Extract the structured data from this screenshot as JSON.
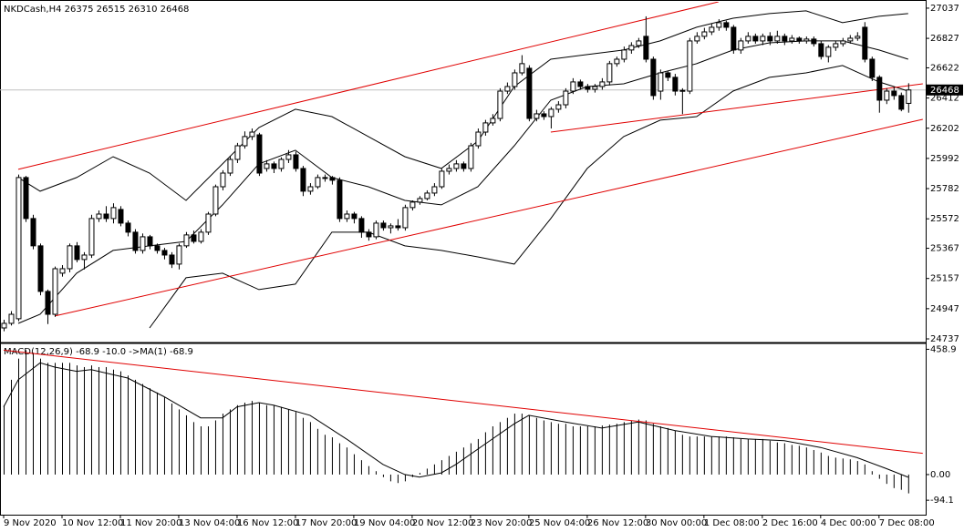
{
  "chart_data": [
    {
      "type": "candlestick",
      "title": "NKDCash,H4  26375 26515 26310 26468",
      "xlim": [
        -0.5,
        126.4
      ],
      "ylim": [
        24718,
        27081
      ],
      "yticks": [
        27037,
        26827,
        26622,
        26412,
        26202,
        25992,
        25782,
        25572,
        25367,
        25157,
        24947,
        24737
      ],
      "last_price": 26468,
      "color": "#000000",
      "open": [
        24813,
        24845,
        24877,
        25859,
        25574,
        25384,
        25067,
        24908,
        25194,
        25225,
        25384,
        25289,
        25320,
        25574,
        25605,
        25574,
        25637,
        25542,
        25479,
        25352,
        25447,
        25384,
        25352,
        25320,
        25257,
        25384,
        25460,
        25415,
        25479,
        25605,
        25795,
        25890,
        25985,
        26080,
        26144,
        26156,
        25922,
        25954,
        25922,
        25985,
        26017,
        25922,
        25764,
        25795,
        25859,
        25859,
        25840,
        25574,
        25605,
        25574,
        25479,
        25447,
        25542,
        25510,
        25523,
        25510,
        25650,
        25688,
        25713,
        25751,
        25795,
        25903,
        25922,
        25954,
        25922,
        26080,
        26175,
        26239,
        26270,
        26460,
        26492,
        26587,
        26619,
        26270,
        26302,
        26283,
        26334,
        26365,
        26460,
        26524,
        26492,
        26473,
        26492,
        26524,
        26651,
        26682,
        26746,
        26777,
        26841,
        26682,
        26460,
        26587,
        26556,
        26460,
        26460,
        26809,
        26841,
        26872,
        26904,
        26936,
        26904,
        26746,
        26809,
        26841,
        26809,
        26841,
        26809,
        26841,
        26809,
        26828,
        26809,
        26822,
        26790,
        26701,
        26765,
        26790,
        26809,
        26828,
        26904,
        26682,
        26556,
        26397,
        26460,
        26429,
        26375
      ],
      "high": [
        24870,
        24930,
        25880,
        25870,
        25600,
        25400,
        25080,
        25240,
        25250,
        25400,
        25410,
        25340,
        25600,
        25630,
        25660,
        25680,
        25660,
        25560,
        25500,
        25470,
        25460,
        25400,
        25370,
        25340,
        25400,
        25480,
        25490,
        25500,
        25620,
        25810,
        25910,
        26010,
        26100,
        26180,
        26200,
        26170,
        25980,
        25970,
        26000,
        26050,
        26040,
        25940,
        25820,
        25880,
        25880,
        25870,
        25860,
        25630,
        25620,
        25590,
        25500,
        25560,
        25560,
        25540,
        25570,
        25670,
        25700,
        25730,
        25770,
        25820,
        25920,
        25950,
        25980,
        25970,
        26100,
        26200,
        26260,
        26300,
        26480,
        26520,
        26610,
        26710,
        26640,
        26330,
        26320,
        26350,
        26390,
        26480,
        26550,
        26540,
        26510,
        26510,
        26550,
        26670,
        26700,
        26770,
        26800,
        26830,
        26980,
        26700,
        26610,
        26600,
        26580,
        26480,
        26830,
        26870,
        26900,
        26930,
        26960,
        26950,
        26920,
        26830,
        26870,
        26860,
        26860,
        26870,
        26880,
        26860,
        26850,
        26840,
        26840,
        26840,
        26810,
        26780,
        26810,
        26830,
        26850,
        26870,
        26940,
        26700,
        26570,
        26480,
        26490,
        26450,
        26515
      ],
      "low": [
        24790,
        24830,
        24860,
        25550,
        25360,
        25040,
        24840,
        24890,
        25170,
        25200,
        25270,
        25220,
        25300,
        25550,
        25550,
        25540,
        25520,
        25450,
        25330,
        25330,
        25360,
        25330,
        25290,
        25230,
        25220,
        25370,
        25400,
        25400,
        25460,
        25590,
        25770,
        25870,
        25960,
        26060,
        26120,
        25870,
        25900,
        25890,
        25900,
        25960,
        25900,
        25730,
        25740,
        25780,
        25830,
        25810,
        25550,
        25550,
        25540,
        25440,
        25420,
        25430,
        25490,
        25470,
        25490,
        25490,
        25630,
        25670,
        25700,
        25730,
        25780,
        25880,
        25900,
        25900,
        25900,
        26060,
        26150,
        26220,
        26250,
        26440,
        26470,
        26570,
        26250,
        26250,
        26260,
        26200,
        26310,
        26340,
        26440,
        26470,
        26450,
        26450,
        26470,
        26500,
        26630,
        26660,
        26720,
        26760,
        26660,
        26400,
        26400,
        26530,
        26430,
        26300,
        26440,
        26790,
        26820,
        26850,
        26880,
        26880,
        26720,
        26720,
        26790,
        26790,
        26780,
        26780,
        26790,
        26780,
        26790,
        26790,
        26790,
        26770,
        26680,
        26660,
        26740,
        26770,
        26790,
        26810,
        26660,
        26530,
        26310,
        26370,
        26400,
        26320,
        26310
      ],
      "close": [
        24845,
        24908,
        25859,
        25574,
        25384,
        25067,
        24908,
        25225,
        25225,
        25384,
        25289,
        25320,
        25574,
        25605,
        25574,
        25650,
        25542,
        25479,
        25352,
        25447,
        25384,
        25352,
        25320,
        25257,
        25384,
        25460,
        25415,
        25479,
        25605,
        25795,
        25890,
        25985,
        26080,
        26144,
        26175,
        25890,
        25954,
        25922,
        25985,
        26017,
        25922,
        25764,
        25795,
        25859,
        25855,
        25840,
        25574,
        25605,
        25574,
        25479,
        25447,
        25542,
        25510,
        25523,
        25510,
        25650,
        25688,
        25713,
        25751,
        25795,
        25903,
        25922,
        25954,
        25922,
        26080,
        26175,
        26239,
        26270,
        26460,
        26492,
        26587,
        26651,
        26270,
        26302,
        26283,
        26334,
        26365,
        26460,
        26524,
        26492,
        26473,
        26492,
        26524,
        26651,
        26682,
        26746,
        26777,
        26809,
        26682,
        26429,
        26587,
        26556,
        26460,
        26465,
        26809,
        26841,
        26872,
        26904,
        26936,
        26904,
        26746,
        26809,
        26841,
        26809,
        26841,
        26809,
        26841,
        26809,
        26828,
        26809,
        26822,
        26790,
        26701,
        26765,
        26790,
        26809,
        26828,
        26841,
        26682,
        26556,
        26397,
        26460,
        26429,
        26334,
        26468
      ],
      "overlays": [
        {
          "color": "#000000",
          "x": [
            2,
            5,
            10,
            15,
            20,
            25,
            30,
            35,
            40,
            45,
            50,
            55,
            60,
            65,
            70,
            75,
            80,
            85,
            90,
            95,
            100,
            105,
            110,
            115,
            120,
            124
          ],
          "values": [
            25859,
            25764,
            25859,
            26004,
            25890,
            25700,
            25954,
            26207,
            26334,
            26283,
            26144,
            26004,
            25922,
            26112,
            26492,
            26682,
            26714,
            26746,
            26809,
            26904,
            26967,
            26999,
            27018,
            26936,
            26980,
            26999
          ]
        },
        {
          "color": "#000000",
          "x": [
            2,
            5,
            10,
            15,
            20,
            25,
            30,
            35,
            40,
            45,
            50,
            55,
            60,
            65,
            70,
            75,
            80,
            85,
            90,
            95,
            100,
            105,
            110,
            115,
            120,
            124
          ],
          "values": [
            24845,
            24908,
            25194,
            25352,
            25384,
            25415,
            25669,
            25954,
            26049,
            25859,
            25795,
            25700,
            25669,
            25795,
            26080,
            26397,
            26492,
            26511,
            26587,
            26651,
            26746,
            26796,
            26809,
            26809,
            26746,
            26682
          ]
        },
        {
          "color": "#000000",
          "x": [
            2,
            5,
            10,
            15,
            20,
            25,
            30,
            35,
            40,
            45,
            50,
            55,
            60,
            65,
            70,
            75,
            80,
            85,
            90,
            95,
            100,
            105,
            110,
            115,
            120,
            124
          ],
          "values": [
            null,
            null,
            null,
            null,
            24813,
            25162,
            25194,
            25080,
            25118,
            25479,
            25479,
            25384,
            25352,
            25307,
            25257,
            25574,
            25922,
            26144,
            26258,
            26283,
            26460,
            26556,
            26587,
            26638,
            26524,
            26460
          ]
        }
      ],
      "trendlines": [
        {
          "color": "#e00000",
          "x": [
            2,
            98
          ],
          "values": [
            25916,
            27081
          ]
        },
        {
          "color": "#e00000",
          "x": [
            7,
            126
          ],
          "values": [
            24896,
            26264
          ]
        },
        {
          "color": "#e00000",
          "x": [
            75,
            126
          ],
          "values": [
            26175,
            26511
          ]
        }
      ]
    },
    {
      "type": "macd",
      "title": "MACD(12,26,9) -68.9 -10.0 ->MA(1) -68.9",
      "xlim": [
        -0.5,
        126.4
      ],
      "ylim": [
        -147,
        477
      ],
      "yticks": [
        458.9,
        {
          "value": 0,
          "label": "0.00"
        },
        -94.1
      ],
      "xticks": [
        {
          "value": 0,
          "label": "9 Nov 2020"
        },
        {
          "value": 8,
          "label": "10 Nov 12:00"
        },
        {
          "value": 16,
          "label": "11 Nov 20:00"
        },
        {
          "value": 24,
          "label": "13 Nov 04:00"
        },
        {
          "value": 32,
          "label": "16 Nov 12:00"
        },
        {
          "value": 40,
          "label": "17 Nov 20:00"
        },
        {
          "value": 48,
          "label": "19 Nov 04:00"
        },
        {
          "value": 56,
          "label": "20 Nov 12:00"
        },
        {
          "value": 64,
          "label": "23 Nov 20:00"
        },
        {
          "value": 72,
          "label": "25 Nov 04:00"
        },
        {
          "value": 80,
          "label": "26 Nov 12:00"
        },
        {
          "value": 88,
          "label": "30 Nov 00:00"
        },
        {
          "value": 96,
          "label": "1 Dec 08:00"
        },
        {
          "value": 104,
          "label": "2 Dec 16:00"
        },
        {
          "value": 112,
          "label": "4 Dec 00:00"
        },
        {
          "value": 120,
          "label": "7 Dec 08:00"
        }
      ],
      "series": [
        {
          "kind": "histogram",
          "color": "#000000",
          "values": [
            254.2,
            347.2,
            424.7,
            455.7,
            446.4,
            424.7,
            409.2,
            409.2,
            409.2,
            409.2,
            399.9,
            393.7,
            399.9,
            393.7,
            393.7,
            384.4,
            378.2,
            362.7,
            347.2,
            331.7,
            316.2,
            300.7,
            285.2,
            260.4,
            238.7,
            217,
            192.2,
            176.7,
            176.7,
            198.4,
            223.2,
            238.7,
            254.2,
            263.5,
            269.7,
            263.5,
            254.2,
            254.2,
            248,
            238.7,
            229.4,
            207.7,
            192.2,
            167.4,
            145.7,
            136.4,
            114.7,
            99.2,
            74.4,
            52.7,
            31,
            12.4,
            -9.3,
            -24.8,
            -31,
            -24.8,
            -9.3,
            6.2,
            21.7,
            37.2,
            52.7,
            68.2,
            83.7,
            99.2,
            114.7,
            130.2,
            155,
            176.7,
            192.2,
            207.7,
            223.2,
            223.2,
            217,
            207.7,
            198.4,
            192.2,
            186,
            186,
            176.7,
            176.7,
            176.7,
            176.7,
            179.8,
            182.9,
            186,
            192.2,
            198.4,
            201.5,
            198.4,
            186,
            176.7,
            170.5,
            161.2,
            145.7,
            139.5,
            139.5,
            139.5,
            139.5,
            139.5,
            139.5,
            136.4,
            130.2,
            130.2,
            130.2,
            130.2,
            124,
            117.8,
            114.7,
            108.5,
            105.4,
            99.2,
            89.9,
            80.6,
            68.2,
            62,
            58.9,
            55.8,
            49.6,
            37.2,
            12.4,
            -15.5,
            -34.1,
            -49.6,
            -55.8,
            -68.9
          ]
        },
        {
          "kind": "line",
          "color": "#000000",
          "x": [
            0,
            2,
            5,
            7,
            10,
            12,
            17,
            22,
            27,
            30,
            32,
            35,
            37,
            42,
            47,
            52,
            55,
            57,
            60,
            62,
            67,
            70,
            72,
            77,
            82,
            87,
            92,
            97,
            102,
            107,
            112,
            117,
            121,
            124
          ],
          "values": [
            248,
            347.2,
            409.2,
            393.7,
            378.2,
            384.4,
            353.4,
            285.2,
            207.7,
            207.7,
            248,
            263.5,
            254.2,
            217,
            130.2,
            37.2,
            0,
            -9.3,
            6.2,
            37.2,
            130.2,
            186,
            217,
            192.2,
            170.5,
            192.2,
            161.2,
            139.5,
            130.2,
            124,
            99.2,
            62,
            21.7,
            -10
          ]
        }
      ],
      "trendlines": [
        {
          "color": "#e00000",
          "x": [
            0,
            126
          ],
          "values": [
            455.7,
            78
          ]
        }
      ]
    }
  ]
}
